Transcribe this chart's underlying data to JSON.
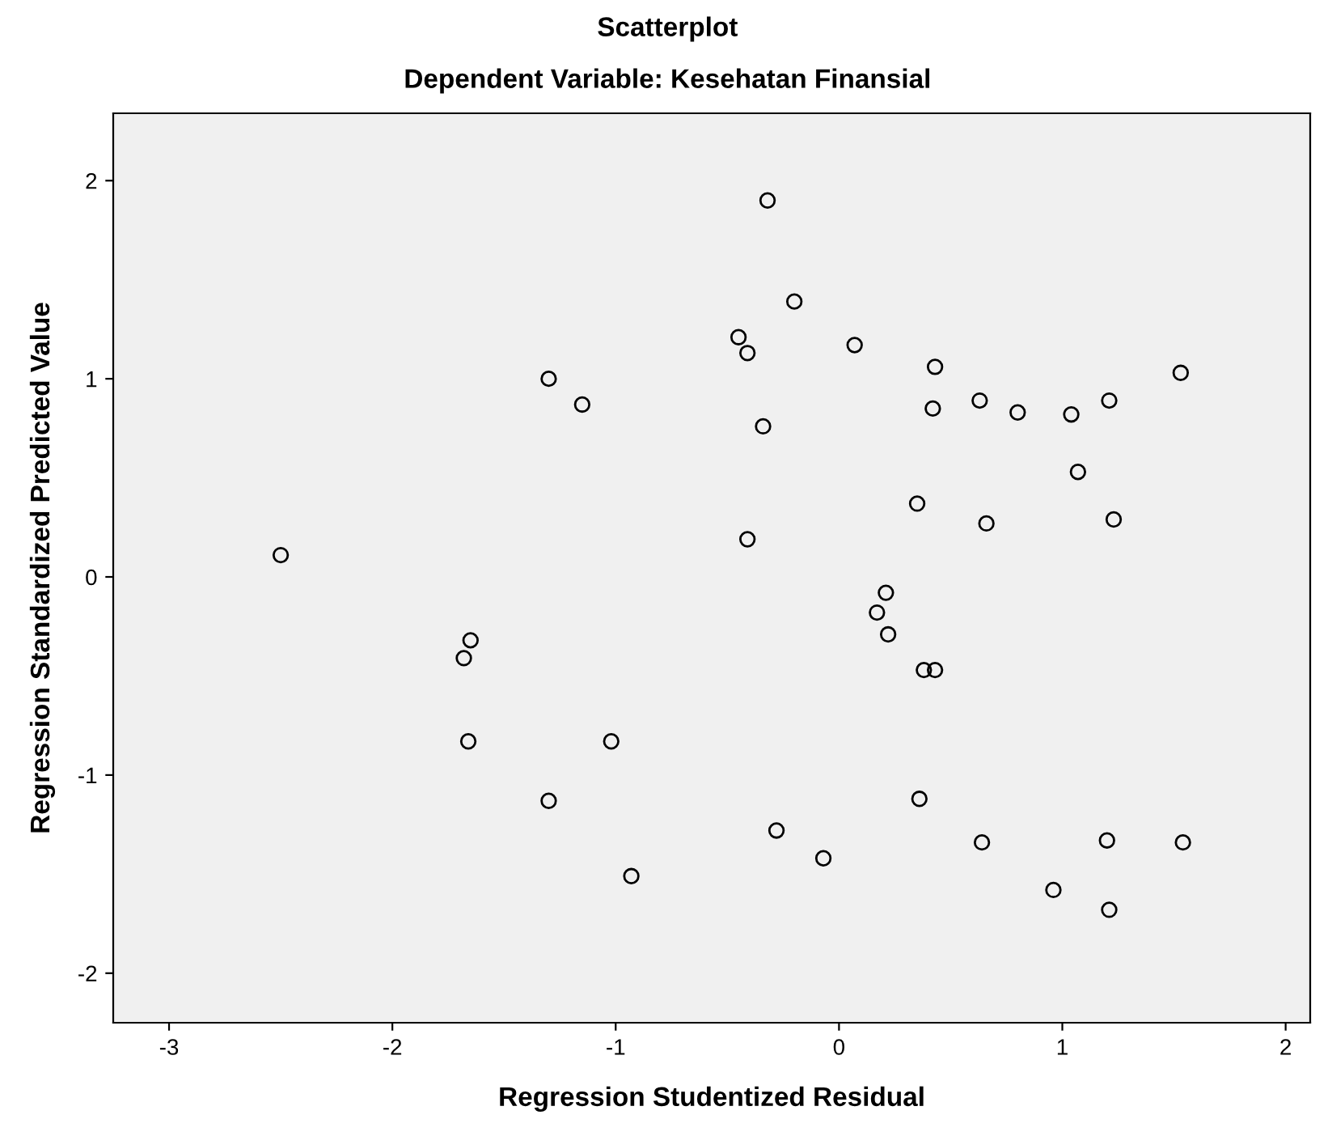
{
  "chart_data": {
    "type": "scatter",
    "title": "Scatterplot",
    "subtitle": "Dependent Variable: Kesehatan Finansial",
    "xlabel": "Regression Studentized Residual",
    "ylabel": "Regression Standardized Predicted Value",
    "xlim": [
      -3.25,
      2.11
    ],
    "ylim": [
      -2.25,
      2.34
    ],
    "xticks": [
      -3,
      -2,
      -1,
      0,
      1,
      2
    ],
    "yticks": [
      -2,
      -1,
      0,
      1,
      2
    ],
    "grid": false,
    "marker": "circle",
    "series": [
      {
        "color": "#000000",
        "x": [
          -0.32,
          -0.2,
          -0.45,
          -0.41,
          0.07,
          0.43,
          -1.3,
          -1.15,
          -0.34,
          0.42,
          0.63,
          0.8,
          1.04,
          1.21,
          1.53,
          1.07,
          0.35,
          0.66,
          1.23,
          -0.41,
          -2.5,
          0.21,
          0.17,
          0.22,
          0.38,
          0.43,
          -1.65,
          -1.68,
          -1.66,
          -1.02,
          -1.3,
          -0.28,
          0.36,
          -0.93,
          -0.07,
          0.64,
          1.2,
          1.54,
          0.96,
          1.21
        ],
        "values": [
          1.9,
          1.39,
          1.21,
          1.13,
          1.17,
          1.06,
          1.0,
          0.87,
          0.76,
          0.85,
          0.89,
          0.83,
          0.82,
          0.89,
          1.03,
          0.53,
          0.37,
          0.27,
          0.29,
          0.19,
          0.11,
          -0.08,
          -0.18,
          -0.29,
          -0.47,
          -0.47,
          -0.32,
          -0.41,
          -0.83,
          -0.83,
          -1.13,
          -1.28,
          -1.12,
          -1.51,
          -1.42,
          -1.34,
          -1.33,
          -1.34,
          -1.58,
          -1.68
        ]
      }
    ]
  }
}
